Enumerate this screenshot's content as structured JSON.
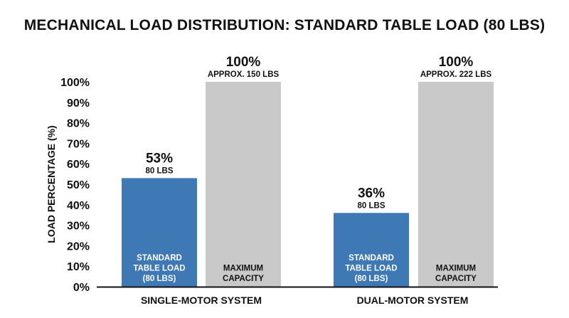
{
  "chart_data": {
    "type": "bar",
    "title": "MECHANICAL LOAD DISTRIBUTION: STANDARD TABLE LOAD (80 LBS)",
    "ylabel": "LOAD PERCENTAGE (%)",
    "ylim": [
      0,
      100
    ],
    "yticks": [
      "0%",
      "10%",
      "20%",
      "30%",
      "40%",
      "50%",
      "60%",
      "70%",
      "80%",
      "90%",
      "100%"
    ],
    "groups": [
      {
        "label": "SINGLE-MOTOR SYSTEM",
        "bars": [
          {
            "value": 53,
            "label": "53%",
            "sublabel": "80 LBS",
            "inner": [
              "STANDARD",
              "TABLE LOAD",
              "(80 LBS)"
            ],
            "color": "#3e78b5",
            "text_color": "#ffffff"
          },
          {
            "value": 100,
            "label": "100%",
            "sublabel": "APPROX. 150 LBS",
            "inner": [
              "MAXIMUM",
              "CAPACITY"
            ],
            "color": "#c9c9c9",
            "text_color": "#111111"
          }
        ]
      },
      {
        "label": "DUAL-MOTOR SYSTEM",
        "bars": [
          {
            "value": 36,
            "label": "36%",
            "sublabel": "80 LBS",
            "inner": [
              "STANDARD",
              "TABLE LOAD",
              "(80 LBS)"
            ],
            "color": "#3e78b5",
            "text_color": "#ffffff"
          },
          {
            "value": 100,
            "label": "100%",
            "sublabel": "APPROX. 222 LBS",
            "inner": [
              "MAXIMUM",
              "CAPACITY"
            ],
            "color": "#c9c9c9",
            "text_color": "#111111"
          }
        ]
      }
    ]
  }
}
